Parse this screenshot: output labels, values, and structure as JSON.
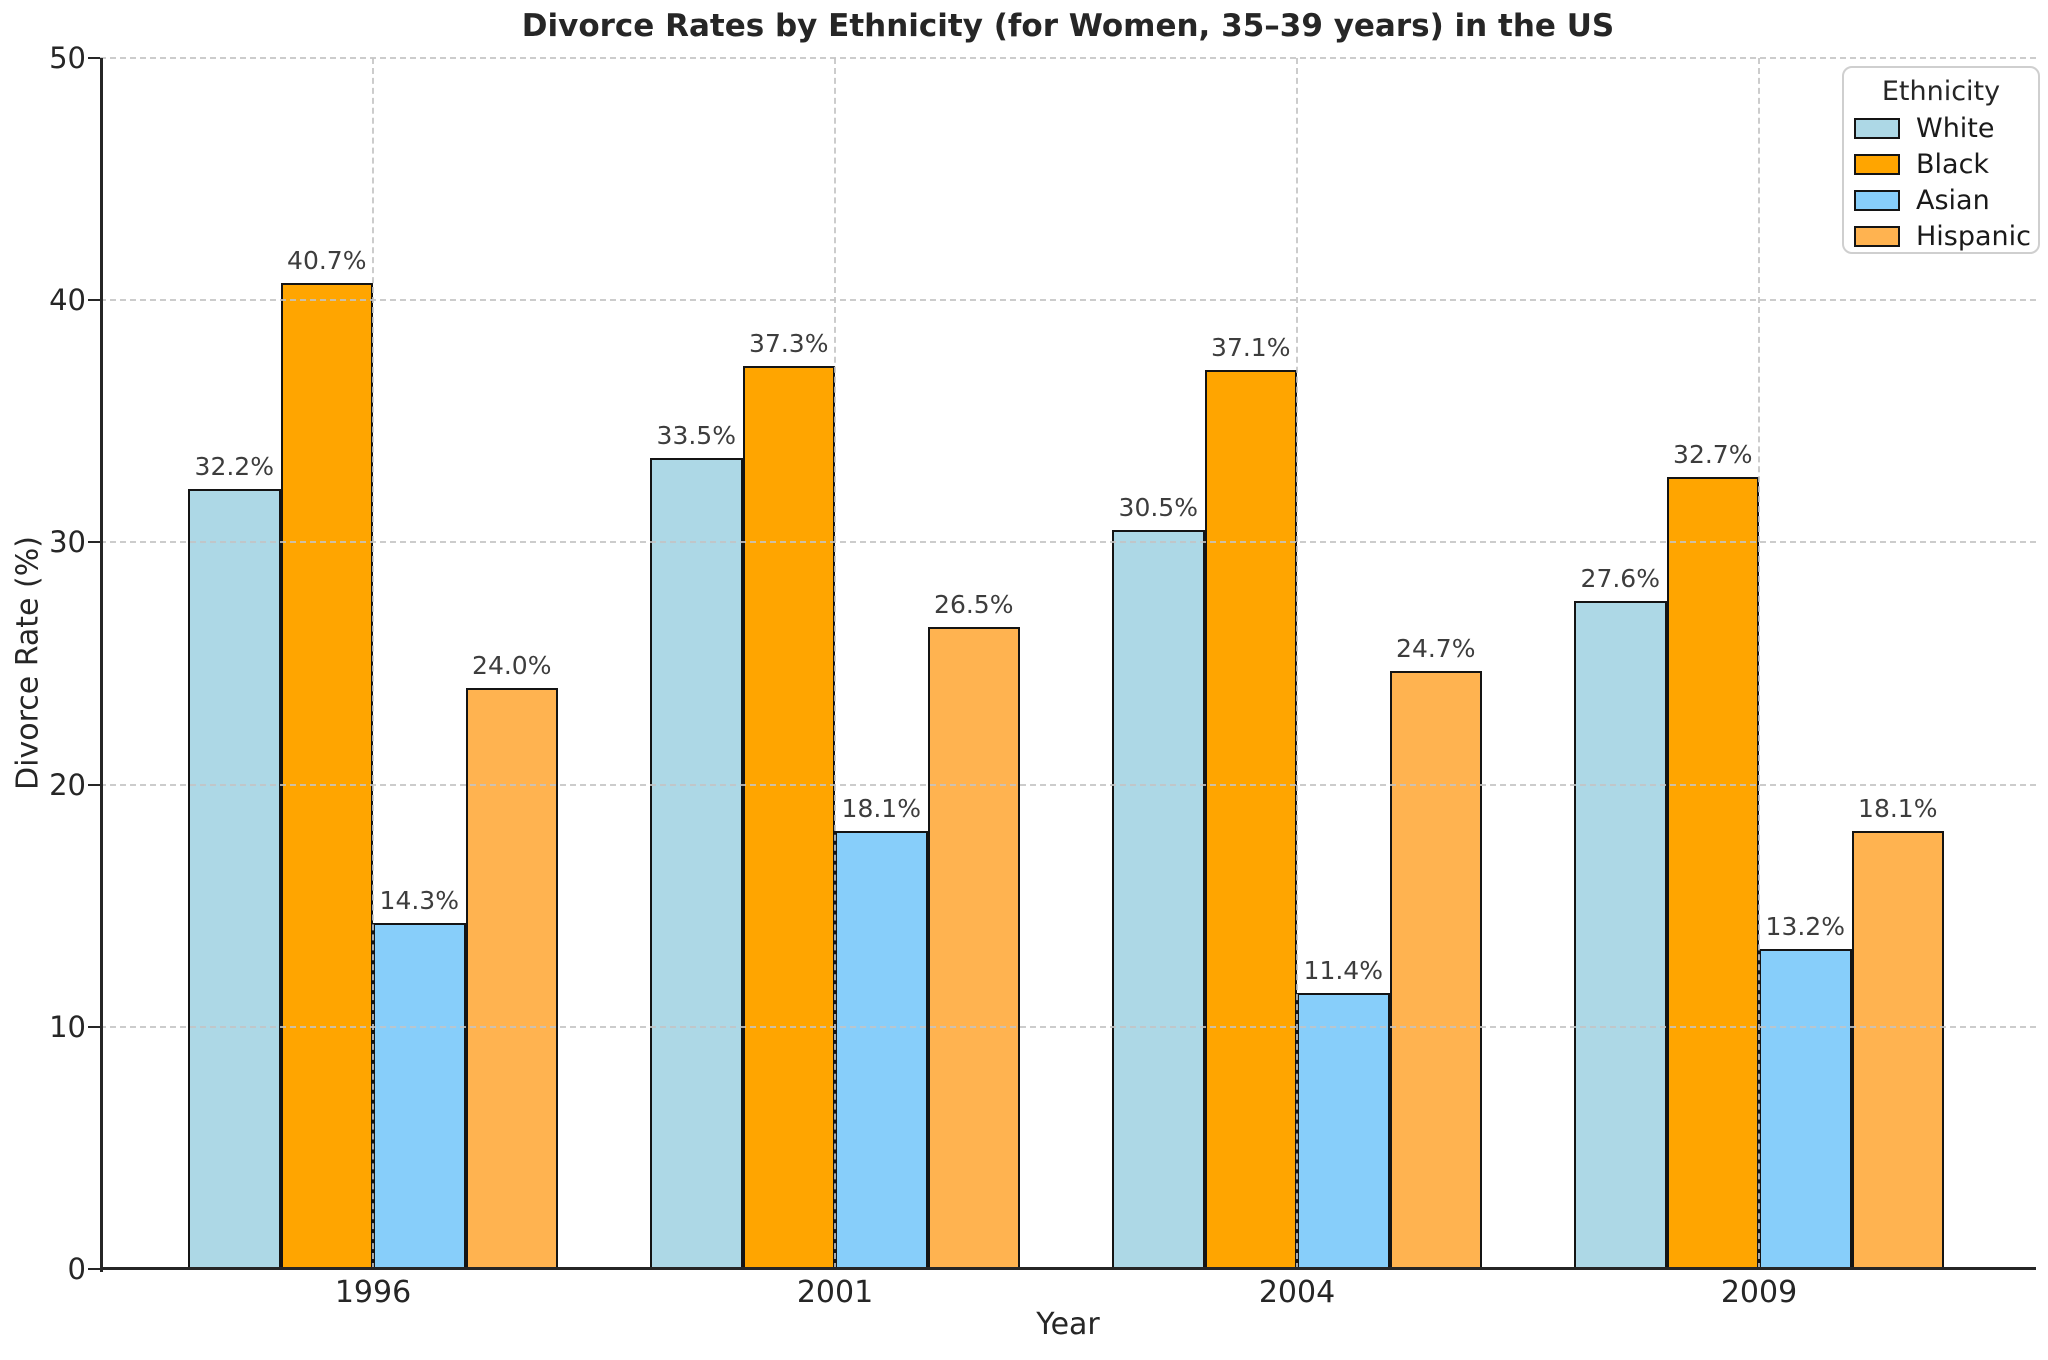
{
  "chart_data": {
    "type": "bar",
    "title": "Divorce Rates by Ethnicity (for Women, 35–39 years) in the US",
    "xlabel": "Year",
    "ylabel": "Divorce Rate (%)",
    "categories": [
      "1996",
      "2001",
      "2004",
      "2009"
    ],
    "series": [
      {
        "name": "White",
        "color": "#ADD8E6",
        "values": [
          32.2,
          33.5,
          30.5,
          27.6
        ]
      },
      {
        "name": "Black",
        "color": "#FFA500",
        "values": [
          40.7,
          37.3,
          37.1,
          32.7
        ]
      },
      {
        "name": "Asian",
        "color": "#87CEFA",
        "values": [
          14.3,
          18.1,
          11.4,
          13.2
        ]
      },
      {
        "name": "Hispanic",
        "color": "#FFB350",
        "values": [
          24.0,
          26.5,
          24.7,
          18.1
        ]
      }
    ],
    "bar_labels": [
      [
        "32.2%",
        "33.5%",
        "30.5%",
        "27.6%"
      ],
      [
        "40.7%",
        "37.3%",
        "37.1%",
        "32.7%"
      ],
      [
        "14.3%",
        "18.1%",
        "11.4%",
        "13.2%"
      ],
      [
        "24.0%",
        "26.5%",
        "24.7%",
        "18.1%"
      ]
    ],
    "ylim": [
      0,
      50
    ],
    "yticks": [
      "0",
      "10",
      "20",
      "30",
      "40",
      "50"
    ],
    "grid": true,
    "grid_style": "dashed",
    "legend_title": "Ethnicity",
    "legend_position": "top-right",
    "bar_edge_color": "#141414",
    "axis_color": "#262626"
  }
}
